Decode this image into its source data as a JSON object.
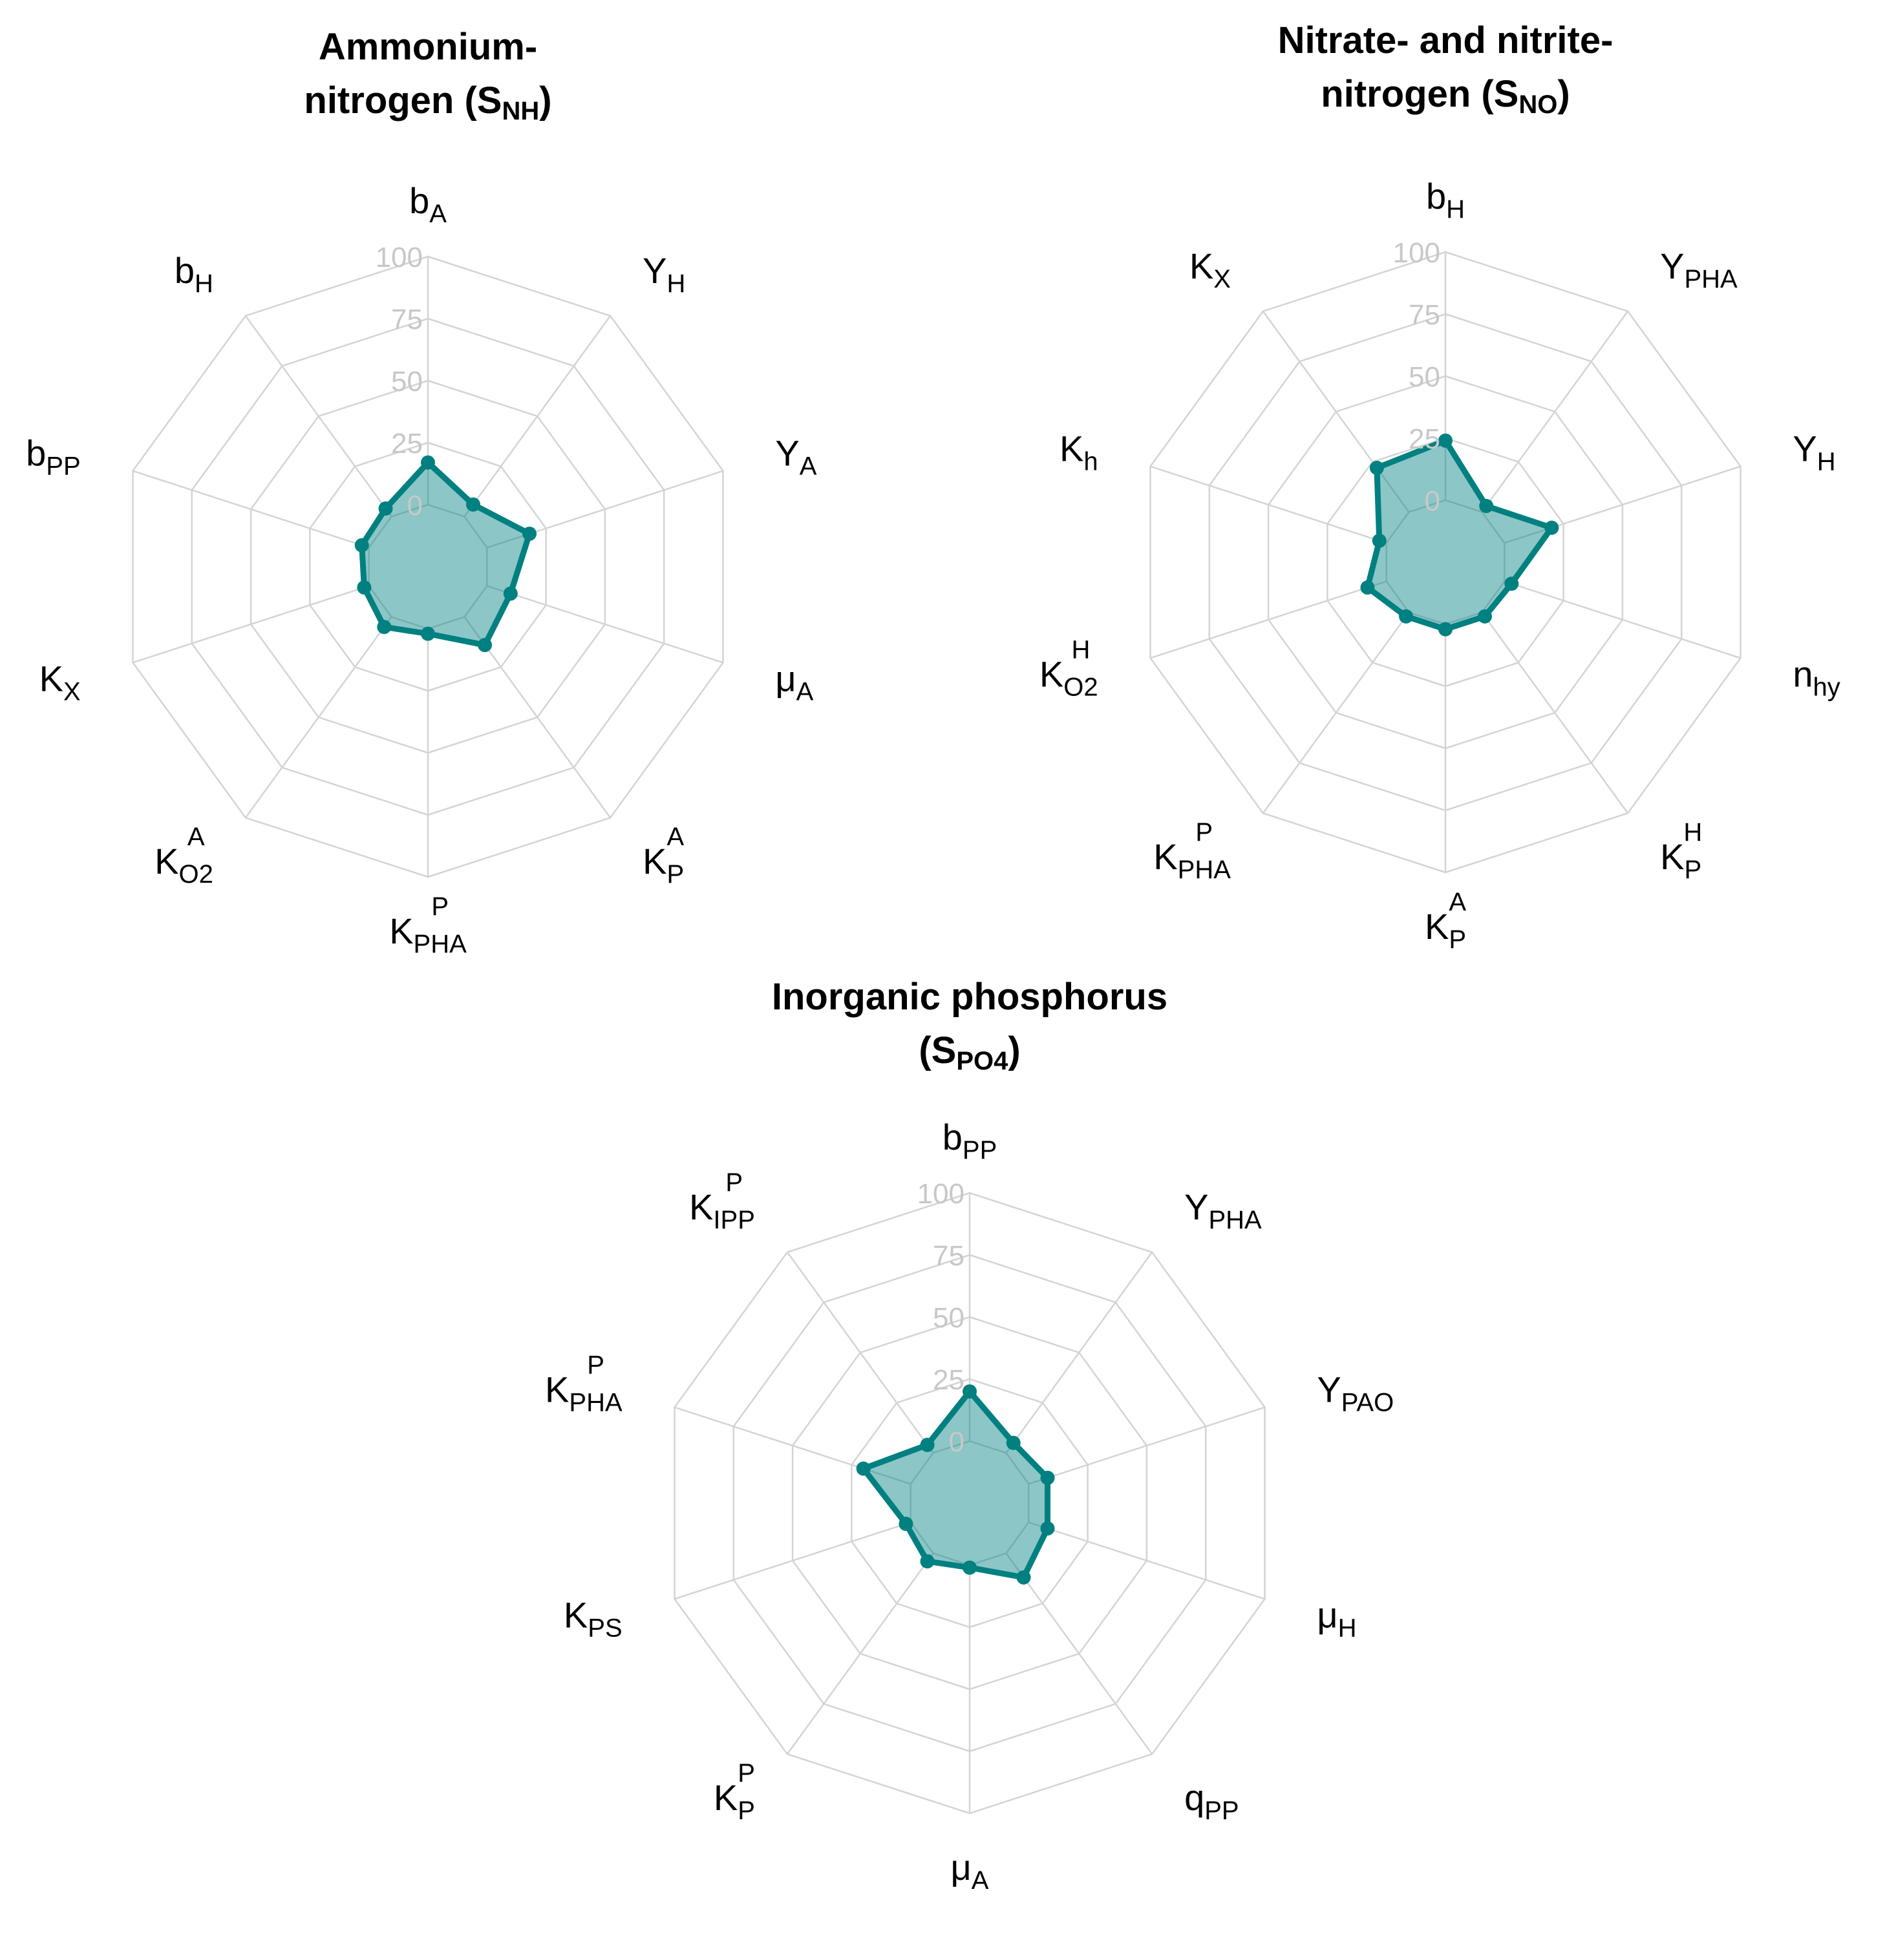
{
  "colors": {
    "series": "#008080",
    "grid": "#d4d4d4",
    "tick_text": "#c8c8c8"
  },
  "chart_data": [
    {
      "type": "radar",
      "title_lines": [
        {
          "main": "Ammonium-",
          "sub": ""
        },
        {
          "main": "nitrogen (S",
          "sub": "NH",
          "tail": ")"
        }
      ],
      "radial_ticks": [
        "0",
        "25",
        "50",
        "75",
        "100"
      ],
      "rlim": [
        0,
        100
      ],
      "axes": [
        {
          "main": "b",
          "sub": "A",
          "sup": ""
        },
        {
          "main": "Y",
          "sub": "H",
          "sup": ""
        },
        {
          "main": "Y",
          "sub": "A",
          "sup": ""
        },
        {
          "main": "μ",
          "sub": "A",
          "sup": ""
        },
        {
          "main": "K",
          "sub": "P",
          "sup": "A"
        },
        {
          "main": "K",
          "sub": "PHA",
          "sup": "P"
        },
        {
          "main": "K",
          "sub": "O2",
          "sup": "A"
        },
        {
          "main": "K",
          "sub": "X",
          "sup": ""
        },
        {
          "main": "b",
          "sub": "PP",
          "sup": ""
        },
        {
          "main": "b",
          "sub": "H",
          "sup": ""
        }
      ],
      "values": [
        17,
        6,
        18,
        10,
        14,
        2,
        5,
        2,
        3,
        4
      ]
    },
    {
      "type": "radar",
      "title_lines": [
        {
          "main": "Nitrate- and nitrite-",
          "sub": ""
        },
        {
          "main": "nitrogen (S",
          "sub": "NO",
          "tail": ")"
        }
      ],
      "radial_ticks": [
        "0",
        "25",
        "50",
        "75",
        "100"
      ],
      "rlim": [
        0,
        100
      ],
      "axes": [
        {
          "main": "b",
          "sub": "H",
          "sup": ""
        },
        {
          "main": "Y",
          "sub": "PHA",
          "sup": ""
        },
        {
          "main": "Y",
          "sub": "H",
          "sup": ""
        },
        {
          "main": "n",
          "sub": "hy",
          "sup": ""
        },
        {
          "main": "K",
          "sub": "P",
          "sup": "H"
        },
        {
          "main": "K",
          "sub": "P",
          "sup": "A"
        },
        {
          "main": "K",
          "sub": "PHA",
          "sup": "P"
        },
        {
          "main": "K",
          "sub": "O2",
          "sup": "H"
        },
        {
          "main": "K",
          "sub": "h",
          "sup": ""
        },
        {
          "main": "K",
          "sub": "X",
          "sup": ""
        }
      ],
      "values": [
        24,
        3,
        20,
        3,
        2,
        2,
        2,
        8,
        3,
        22
      ]
    },
    {
      "type": "radar",
      "title_lines": [
        {
          "main": "Inorganic phosphorus",
          "sub": ""
        },
        {
          "main": "(S",
          "sub": "PO4",
          "tail": ")"
        }
      ],
      "radial_ticks": [
        "0",
        "25",
        "50",
        "75",
        "100"
      ],
      "rlim": [
        0,
        100
      ],
      "axes": [
        {
          "main": "b",
          "sub": "PP",
          "sup": ""
        },
        {
          "main": "Y",
          "sub": "PHA",
          "sup": ""
        },
        {
          "main": "Y",
          "sub": "PAO",
          "sup": ""
        },
        {
          "main": "μ",
          "sub": "H",
          "sup": ""
        },
        {
          "main": "q",
          "sub": "PP",
          "sup": ""
        },
        {
          "main": "μ",
          "sub": "A",
          "sup": ""
        },
        {
          "main": "K",
          "sub": "P",
          "sup": "P"
        },
        {
          "main": "K",
          "sub": "PS",
          "sup": ""
        },
        {
          "main": "K",
          "sub": "PHA",
          "sup": "P"
        },
        {
          "main": "K",
          "sub": "IPP",
          "sup": "P"
        }
      ],
      "values": [
        20,
        5,
        8,
        8,
        12,
        1,
        4,
        2,
        20,
        4
      ]
    }
  ]
}
